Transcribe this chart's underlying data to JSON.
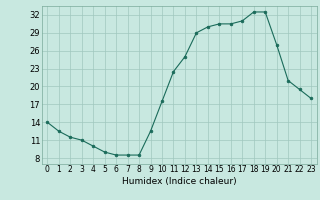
{
  "x": [
    0,
    1,
    2,
    3,
    4,
    5,
    6,
    7,
    8,
    9,
    10,
    11,
    12,
    13,
    14,
    15,
    16,
    17,
    18,
    19,
    20,
    21,
    22,
    23
  ],
  "y": [
    14,
    12.5,
    11.5,
    11,
    10,
    9,
    8.5,
    8.5,
    8.5,
    12.5,
    17.5,
    22.5,
    25,
    29,
    30,
    30.5,
    30.5,
    31,
    32.5,
    32.5,
    27,
    21,
    19.5,
    18
  ],
  "line_color": "#1a6b5a",
  "marker_color": "#1a6b5a",
  "bg_color": "#c8e8e0",
  "xlabel": "Humidex (Indice chaleur)",
  "yticks": [
    8,
    11,
    14,
    17,
    20,
    23,
    26,
    29,
    32
  ],
  "ylim": [
    7,
    33.5
  ],
  "xlim": [
    -0.5,
    23.5
  ],
  "xticks": [
    0,
    1,
    2,
    3,
    4,
    5,
    6,
    7,
    8,
    9,
    10,
    11,
    12,
    13,
    14,
    15,
    16,
    17,
    18,
    19,
    20,
    21,
    22,
    23
  ]
}
